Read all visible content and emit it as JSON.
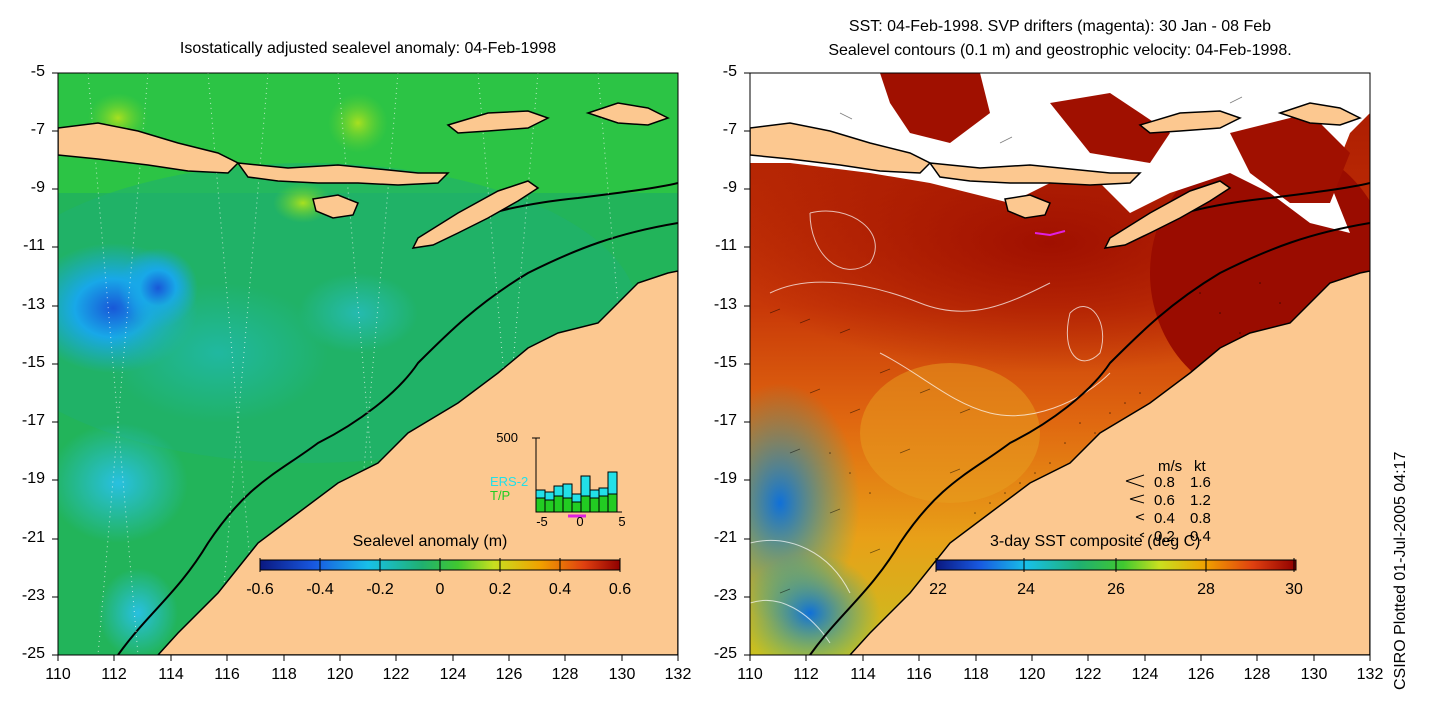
{
  "left_panel": {
    "title": "Isostatically adjusted sealevel anomaly: 04-Feb-1998",
    "colorbar": {
      "label": "Sealevel anomaly (m)",
      "ticks": [
        "-0.6",
        "-0.4",
        "-0.2",
        "0",
        "0.2",
        "0.4",
        "0.6"
      ]
    },
    "inset": {
      "ymax_label": "500",
      "series": [
        "ERS-2",
        "T/P"
      ],
      "series_colors": [
        "#22e0e8",
        "#22cc22"
      ],
      "xticks": [
        "-5",
        "0",
        "5"
      ]
    }
  },
  "right_panel": {
    "title_line1": "SST: 04-Feb-1998. SVP drifters (magenta): 30 Jan - 08 Feb",
    "title_line2": "Sealevel contours (0.1 m) and geostrophic velocity: 04-Feb-1998.",
    "colorbar": {
      "label": "3-day SST composite (deg C)",
      "ticks": [
        "22",
        "24",
        "26",
        "28",
        "30"
      ]
    },
    "velocity_legend": {
      "header_ms": "m/s",
      "header_kt": "kt",
      "rows": [
        {
          "ms": "0.8",
          "kt": "1.6"
        },
        {
          "ms": "0.6",
          "kt": "1.2"
        },
        {
          "ms": "0.4",
          "kt": "0.8"
        },
        {
          "ms": "0.2",
          "kt": "0.4"
        }
      ]
    }
  },
  "axes": {
    "lat_ticks": [
      "-5",
      "-7",
      "-9",
      "-11",
      "-13",
      "-15",
      "-17",
      "-19",
      "-21",
      "-23",
      "-25"
    ],
    "lon_ticks": [
      "110",
      "112",
      "114",
      "116",
      "118",
      "120",
      "122",
      "124",
      "126",
      "128",
      "130",
      "132"
    ],
    "lon_range": [
      110,
      132
    ],
    "lat_range": [
      -25,
      -5
    ]
  },
  "credit": "CSIRO Plotted 01-Jul-2005 04:17",
  "colors": {
    "land": "#fcc890",
    "sea_level_base": "#22b45a",
    "sst_warm": "#a01000"
  }
}
